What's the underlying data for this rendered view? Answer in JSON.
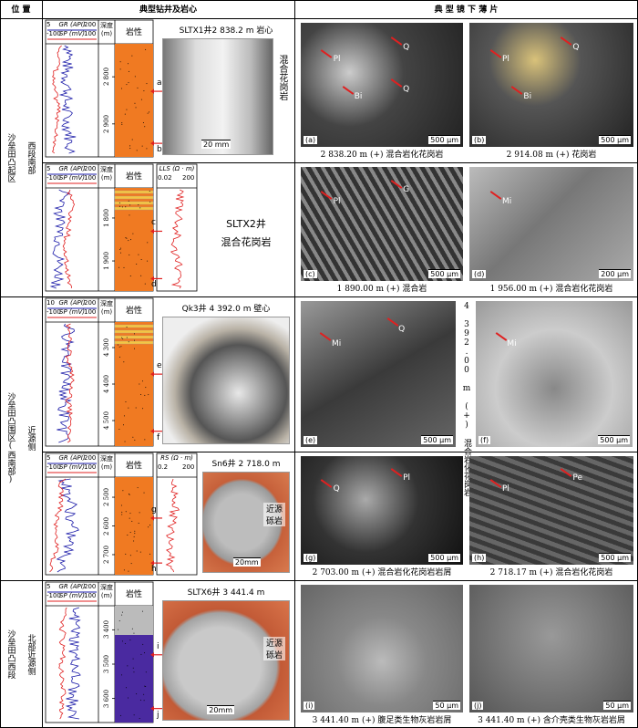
{
  "header": {
    "location": "位 置",
    "wells": "典型钻井及岩心",
    "sections": "典 型 镜 下 薄 片"
  },
  "groups": [
    {
      "location": "沙垒田凸起区",
      "sublocation": "西段南部"
    },
    {
      "location": "沙垒田凸围区(西南部)",
      "sublocation": "近源侧"
    },
    {
      "location": "沙垒田凸西段",
      "sublocation": "北部近源侧"
    }
  ],
  "rows": [
    {
      "log": {
        "gr_label": "GR (API)",
        "gr_min": "5",
        "gr_max": "200",
        "sp_label": "SP (mV)",
        "sp_min": "-100",
        "sp_max": "100",
        "depth_label": "深度 (m)",
        "lith_label": "岩性",
        "depths": [
          "2 800",
          "2 900"
        ],
        "markers": [
          "a",
          "b"
        ]
      },
      "core": {
        "title": "SLTX1井2 838.2 m 岩心",
        "note": "混合花岗岩",
        "scale": "20 mm"
      },
      "sections": [
        {
          "tag": "(a)",
          "scale": "500 μm",
          "minerals": [
            "Pl",
            "Q",
            "Bi",
            "Q"
          ],
          "caption": "2 838.20 m (+) 混合岩化花岗岩"
        },
        {
          "tag": "(b)",
          "scale": "500 μm",
          "minerals": [
            "Pl",
            "Q",
            "Bi"
          ],
          "caption": "2 914.08 m (+) 花岗岩"
        }
      ]
    },
    {
      "log": {
        "gr_label": "GR (API)",
        "gr_min": "5",
        "gr_max": "200",
        "sp_label": "SP (mV)",
        "sp_min": "-100",
        "sp_max": "100",
        "depth_label": "深度 (m)",
        "lith_label": "岩性",
        "depths": [
          "1 800",
          "1 900"
        ],
        "markers": [
          "c",
          "d"
        ],
        "extra": {
          "label": "LLS (Ω · m)",
          "min": "0.02",
          "max": "200"
        }
      },
      "core": {
        "title": "SLTX2井",
        "note": "混合花岗岩"
      },
      "sections": [
        {
          "tag": "(c)",
          "scale": "500 μm",
          "minerals": [
            "Pl",
            "G"
          ],
          "caption": "1 890.00 m (+) 混合岩"
        },
        {
          "tag": "(d)",
          "scale": "200 μm",
          "minerals": [
            "Mi"
          ],
          "caption": "1 956.00 m (+) 混合岩化花岗岩"
        }
      ]
    },
    {
      "log": {
        "gr_label": "GR (API)",
        "gr_min": "10",
        "gr_max": "200",
        "sp_label": "SP (mV)",
        "sp_min": "-100",
        "sp_max": "100",
        "depth_label": "深度 (m)",
        "lith_label": "岩性",
        "depths": [
          "4 300",
          "4 400",
          "4 500"
        ],
        "markers": [
          "e",
          "f"
        ]
      },
      "core": {
        "title": "Qk3井 4 392.0 m 壁心"
      },
      "shared_caption": "4 392.00 m (+) 混合岩化花岗岩",
      "sections": [
        {
          "tag": "(e)",
          "scale": "500 μm",
          "minerals": [
            "Mi",
            "Q"
          ]
        },
        {
          "tag": "(f)",
          "scale": "500 μm",
          "minerals": [
            "Mi"
          ]
        }
      ]
    },
    {
      "log": {
        "gr_label": "GR (API)",
        "gr_min": "5",
        "gr_max": "200",
        "sp_label": "SP (mV)",
        "sp_min": "-100",
        "sp_max": "100",
        "depth_label": "深度 (m)",
        "lith_label": "岩性",
        "depths": [
          "2 500",
          "2 600",
          "2 700"
        ],
        "markers": [
          "g",
          "h"
        ],
        "extra": {
          "label": "RS (Ω · m)",
          "min": "0.2",
          "max": "200"
        }
      },
      "core": {
        "title": "Sn6井 2 718.0 m",
        "note": "近源砾岩",
        "scale": "20mm"
      },
      "sections": [
        {
          "tag": "(g)",
          "scale": "500 μm",
          "minerals": [
            "Q",
            "Pl"
          ],
          "caption": "2 703.00 m (+) 混合岩化花岗岩岩屑"
        },
        {
          "tag": "(h)",
          "scale": "500 μm",
          "minerals": [
            "Pl",
            "Pe"
          ],
          "caption": "2 718.17 m (+) 混合岩化花岗岩"
        }
      ]
    },
    {
      "log": {
        "gr_label": "GR (API)",
        "gr_min": "5",
        "gr_max": "200",
        "sp_label": "SP (mV)",
        "sp_min": "-100",
        "sp_max": "100",
        "depth_label": "深度 (m)",
        "lith_label": "岩性",
        "depths": [
          "3 400",
          "3 500",
          "3 600"
        ],
        "markers": [
          "i",
          "j"
        ]
      },
      "core": {
        "title": "SLTX6井 3 441.4 m",
        "note": "近源砾岩",
        "scale": "20mm"
      },
      "sections": [
        {
          "tag": "(i)",
          "scale": "50 μm",
          "minerals": [],
          "caption": "3 441.40 m (+) 腹足类生物灰岩岩屑"
        },
        {
          "tag": "(j)",
          "scale": "50 μm",
          "minerals": [],
          "caption": "3 441.40 m (+) 含介壳类生物灰岩岩屑"
        }
      ]
    }
  ]
}
